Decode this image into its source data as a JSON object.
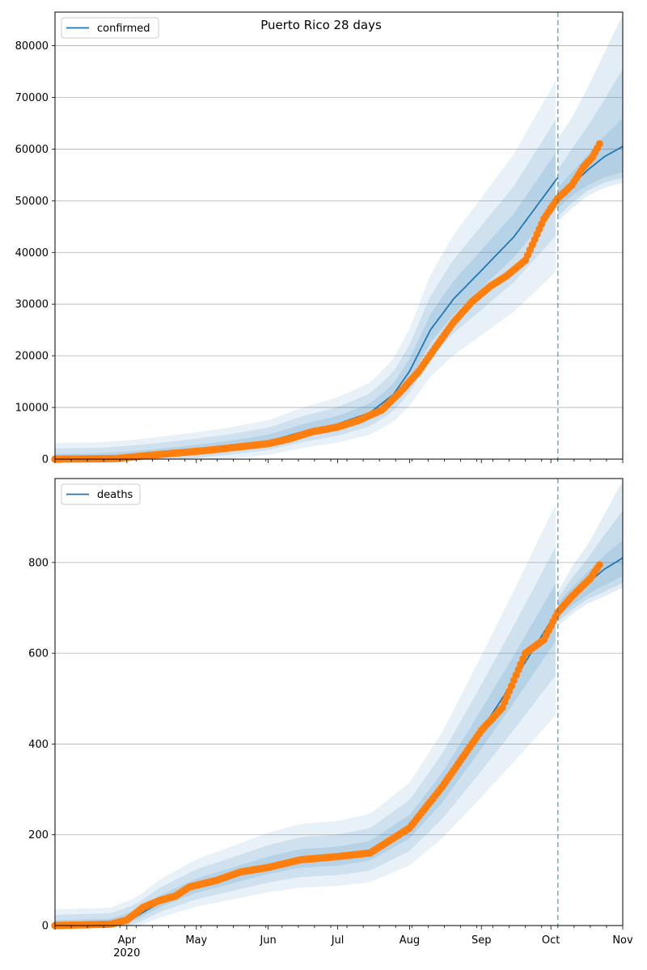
{
  "figure": {
    "title": "Puerto Rico 28 days"
  },
  "colors": {
    "model": "#1f77b4",
    "observed": "#ff7f0e",
    "band": "#1f77b4",
    "grid": "#b0b0b0"
  },
  "x_axis": {
    "date_start": "2020-03-01",
    "date_end": "2020-11-01",
    "ticks": [
      {
        "date": "2020-04-01",
        "label": "Apr",
        "sub": "2020"
      },
      {
        "date": "2020-05-01",
        "label": "May"
      },
      {
        "date": "2020-06-01",
        "label": "Jun"
      },
      {
        "date": "2020-07-01",
        "label": "Jul"
      },
      {
        "date": "2020-08-01",
        "label": "Aug"
      },
      {
        "date": "2020-09-01",
        "label": "Sep"
      },
      {
        "date": "2020-10-01",
        "label": "Oct"
      },
      {
        "date": "2020-11-01",
        "label": "Nov"
      }
    ],
    "forecast_start": "2020-10-04"
  },
  "chart_data": [
    {
      "type": "line",
      "panel": "top",
      "legend": "top-left",
      "grid": "horizontal",
      "ylim": [
        0,
        86500
      ],
      "yticks": [
        0,
        10000,
        20000,
        30000,
        40000,
        50000,
        60000,
        70000,
        80000
      ],
      "series": [
        {
          "name": "confirmed",
          "kind": "model",
          "points": [
            [
              "2020-03-01",
              0
            ],
            [
              "2020-03-20",
              100
            ],
            [
              "2020-04-01",
              400
            ],
            [
              "2020-04-15",
              900
            ],
            [
              "2020-05-01",
              1600
            ],
            [
              "2020-05-15",
              2300
            ],
            [
              "2020-06-01",
              3400
            ],
            [
              "2020-06-15",
              5200
            ],
            [
              "2020-07-01",
              6800
            ],
            [
              "2020-07-15",
              9000
            ],
            [
              "2020-07-25",
              12500
            ],
            [
              "2020-08-01",
              17000
            ],
            [
              "2020-08-10",
              25000
            ],
            [
              "2020-08-20",
              31000
            ],
            [
              "2020-09-01",
              36500
            ],
            [
              "2020-09-15",
              43000
            ],
            [
              "2020-10-04",
              54500
            ]
          ]
        },
        {
          "name": "",
          "kind": "forecast",
          "points": [
            [
              "2020-10-04",
              50500
            ],
            [
              "2020-10-10",
              53000
            ],
            [
              "2020-10-17",
              56000
            ],
            [
              "2020-10-24",
              58500
            ],
            [
              "2020-11-01",
              60500
            ]
          ],
          "band_levels": [
            {
              "points": [
                [
                  "2020-10-04",
                  48500,
                  52500
                ],
                [
                  "2020-10-10",
                  51000,
                  55500
                ],
                [
                  "2020-10-17",
                  53000,
                  59000
                ],
                [
                  "2020-10-24",
                  54500,
                  62500
                ],
                [
                  "2020-11-01",
                  55500,
                  66000
                ]
              ]
            },
            {
              "points": [
                [
                  "2020-10-04",
                  47000,
                  56000
                ],
                [
                  "2020-10-10",
                  49500,
                  60000
                ],
                [
                  "2020-10-17",
                  52000,
                  64500
                ],
                [
                  "2020-10-24",
                  53500,
                  69500
                ],
                [
                  "2020-11-01",
                  54500,
                  75500
                ]
              ]
            },
            {
              "points": [
                [
                  "2020-10-04",
                  46000,
                  62000
                ],
                [
                  "2020-10-10",
                  48500,
                  66000
                ],
                [
                  "2020-10-17",
                  51000,
                  72000
                ],
                [
                  "2020-10-24",
                  52500,
                  78500
                ],
                [
                  "2020-11-01",
                  53500,
                  86000
                ]
              ]
            }
          ]
        },
        {
          "name": "",
          "kind": "observed",
          "points": [
            [
              "2020-03-01",
              0
            ],
            [
              "2020-03-15",
              50
            ],
            [
              "2020-03-27",
              100
            ],
            [
              "2020-04-01",
              300
            ],
            [
              "2020-04-10",
              700
            ],
            [
              "2020-04-20",
              1100
            ],
            [
              "2020-05-01",
              1500
            ],
            [
              "2020-05-10",
              1900
            ],
            [
              "2020-05-20",
              2400
            ],
            [
              "2020-06-01",
              3000
            ],
            [
              "2020-06-10",
              3900
            ],
            [
              "2020-06-20",
              5300
            ],
            [
              "2020-07-01",
              6200
            ],
            [
              "2020-07-10",
              7500
            ],
            [
              "2020-07-20",
              9500
            ],
            [
              "2020-07-28",
              13000
            ],
            [
              "2020-08-05",
              17000
            ],
            [
              "2020-08-12",
              21500
            ],
            [
              "2020-08-20",
              26500
            ],
            [
              "2020-08-28",
              30500
            ],
            [
              "2020-09-05",
              33500
            ],
            [
              "2020-09-12",
              35500
            ],
            [
              "2020-09-20",
              38500
            ],
            [
              "2020-09-24",
              42500
            ],
            [
              "2020-09-28",
              46500
            ],
            [
              "2020-10-04",
              50500
            ],
            [
              "2020-10-10",
              53000
            ],
            [
              "2020-10-15",
              56500
            ],
            [
              "2020-10-19",
              58500
            ],
            [
              "2020-10-22",
              61000
            ]
          ]
        }
      ]
    },
    {
      "type": "line",
      "panel": "bottom",
      "legend": "top-left",
      "grid": "horizontal",
      "ylim": [
        0,
        985
      ],
      "yticks": [
        0,
        200,
        400,
        600,
        800
      ],
      "series": [
        {
          "name": "deaths",
          "kind": "model",
          "points": [
            [
              "2020-03-01",
              0
            ],
            [
              "2020-03-25",
              3
            ],
            [
              "2020-04-05",
              20
            ],
            [
              "2020-04-15",
              50
            ],
            [
              "2020-05-01",
              85
            ],
            [
              "2020-05-15",
              105
            ],
            [
              "2020-06-01",
              130
            ],
            [
              "2020-06-15",
              145
            ],
            [
              "2020-07-01",
              150
            ],
            [
              "2020-07-15",
              162
            ],
            [
              "2020-08-01",
              215
            ],
            [
              "2020-08-15",
              300
            ],
            [
              "2020-09-01",
              430
            ],
            [
              "2020-09-15",
              540
            ],
            [
              "2020-10-04",
              695
            ]
          ]
        },
        {
          "name": "",
          "kind": "forecast",
          "points": [
            [
              "2020-10-04",
              695
            ],
            [
              "2020-10-10",
              725
            ],
            [
              "2020-10-17",
              755
            ],
            [
              "2020-10-24",
              785
            ],
            [
              "2020-11-01",
              810
            ]
          ],
          "band_levels": [
            {
              "points": [
                [
                  "2020-10-04",
                  680,
                  710
                ],
                [
                  "2020-10-10",
                  705,
                  745
                ],
                [
                  "2020-10-17",
                  730,
                  780
                ],
                [
                  "2020-10-24",
                  750,
                  815
                ],
                [
                  "2020-11-01",
                  770,
                  850
                ]
              ]
            },
            {
              "points": [
                [
                  "2020-10-04",
                  670,
                  720
                ],
                [
                  "2020-10-10",
                  695,
                  765
                ],
                [
                  "2020-10-17",
                  720,
                  810
                ],
                [
                  "2020-10-24",
                  735,
                  860
                ],
                [
                  "2020-11-01",
                  755,
                  915
                ]
              ]
            },
            {
              "points": [
                [
                  "2020-10-04",
                  660,
                  735
                ],
                [
                  "2020-10-10",
                  685,
                  790
                ],
                [
                  "2020-10-17",
                  710,
                  840
                ],
                [
                  "2020-10-24",
                  725,
                  905
                ],
                [
                  "2020-11-01",
                  745,
                  980
                ]
              ]
            }
          ]
        },
        {
          "name": "",
          "kind": "observed",
          "points": [
            [
              "2020-03-01",
              0
            ],
            [
              "2020-03-25",
              3
            ],
            [
              "2020-04-01",
              12
            ],
            [
              "2020-04-08",
              40
            ],
            [
              "2020-04-15",
              55
            ],
            [
              "2020-04-22",
              65
            ],
            [
              "2020-04-28",
              85
            ],
            [
              "2020-05-10",
              100
            ],
            [
              "2020-05-20",
              118
            ],
            [
              "2020-06-01",
              128
            ],
            [
              "2020-06-15",
              145
            ],
            [
              "2020-07-01",
              152
            ],
            [
              "2020-07-15",
              160
            ],
            [
              "2020-08-01",
              215
            ],
            [
              "2020-08-15",
              305
            ],
            [
              "2020-09-01",
              430
            ],
            [
              "2020-09-10",
              480
            ],
            [
              "2020-09-15",
              540
            ],
            [
              "2020-09-20",
              600
            ],
            [
              "2020-09-28",
              630
            ],
            [
              "2020-10-04",
              690
            ],
            [
              "2020-10-10",
              725
            ],
            [
              "2020-10-18",
              765
            ],
            [
              "2020-10-22",
              795
            ]
          ]
        }
      ]
    }
  ]
}
